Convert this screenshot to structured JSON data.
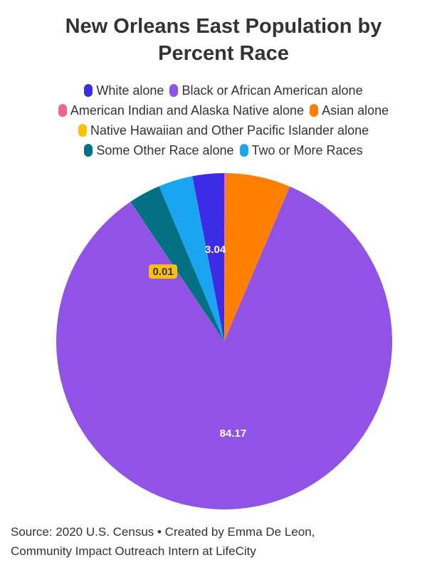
{
  "title_lines": [
    "New Orleans East Population by",
    "Percent Race"
  ],
  "legend_rows": [
    [
      0,
      1
    ],
    [
      2,
      3
    ],
    [
      4
    ],
    [
      5,
      6
    ]
  ],
  "chart_data": {
    "type": "pie",
    "title": "New Orleans East Population by Percent Race",
    "start_angle_deg": 0,
    "direction": "clockwise",
    "series": [
      {
        "name": "White alone",
        "value": 3.04,
        "color": "#3d2ce6",
        "label": "3.04"
      },
      {
        "name": "Black or African American alone",
        "value": 84.17,
        "color": "#9152e6",
        "label": "84.17"
      },
      {
        "name": "American Indian and Alaska Native alone",
        "value": 0.19,
        "color": "#f36688",
        "label": ""
      },
      {
        "name": "Asian alone",
        "value": 6.2,
        "color": "#ff8000",
        "label": ""
      },
      {
        "name": "Native Hawaiian and Other Pacific Islander alone",
        "value": 0.01,
        "color": "#fcc105",
        "label": "0.01"
      },
      {
        "name": "Some Other Race alone",
        "value": 3.1,
        "color": "#037084",
        "label": ""
      },
      {
        "name": "Two or More Races",
        "value": 3.29,
        "color": "#1ba5f0",
        "label": ""
      }
    ],
    "order": [
      2,
      3,
      1,
      4,
      5,
      6,
      0
    ]
  },
  "source_lines": [
    "Source: 2020 U.S. Census • Created by Emma De Leon,",
    "Community Impact Outreach Intern at LifeCity"
  ]
}
